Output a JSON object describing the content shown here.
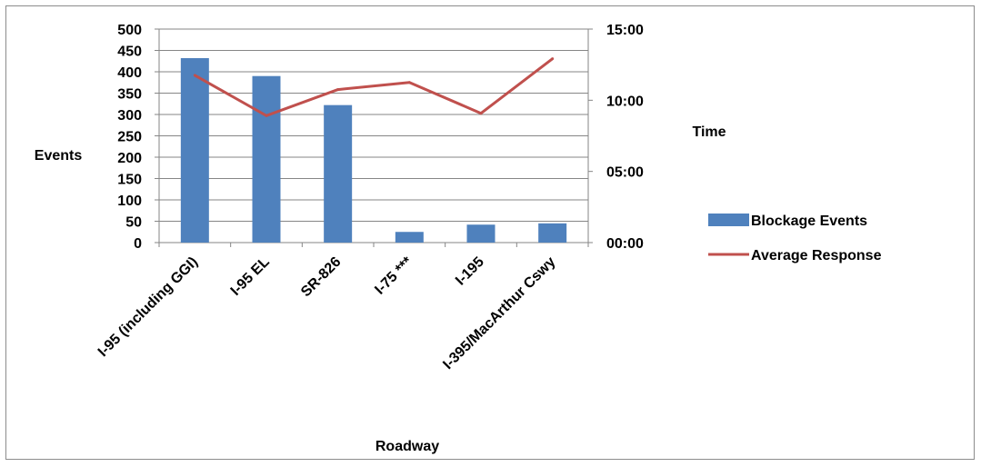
{
  "chart_data": {
    "type": "bar",
    "title": "",
    "categories": [
      "I-95 (including GGI)",
      "I-95 EL",
      "SR-826",
      "I-75 ***",
      "I-195",
      "I-395/MacArthur Cswy"
    ],
    "series": [
      {
        "name": "Blockage Events",
        "type": "bar",
        "axis": "left",
        "color": "#4f81bd",
        "values": [
          432,
          390,
          322,
          25,
          42,
          45
        ]
      },
      {
        "name": "Average Response",
        "type": "line",
        "axis": "right",
        "color": "#c0504d",
        "values": [
          "11:45",
          "08:55",
          "10:45",
          "11:15",
          "09:05",
          "12:55"
        ]
      }
    ],
    "xlabel": "Roadway",
    "ylabel": "Events",
    "y2label": "Time",
    "ylim": [
      0,
      500
    ],
    "y2lim": [
      "00:00",
      "15:00"
    ],
    "yticks": [
      "0",
      "50",
      "100",
      "150",
      "200",
      "250",
      "300",
      "350",
      "400",
      "450",
      "500"
    ],
    "y2ticks": [
      "00:00",
      "05:00",
      "10:00",
      "15:00"
    ],
    "grid": true,
    "legend_position": "right"
  }
}
